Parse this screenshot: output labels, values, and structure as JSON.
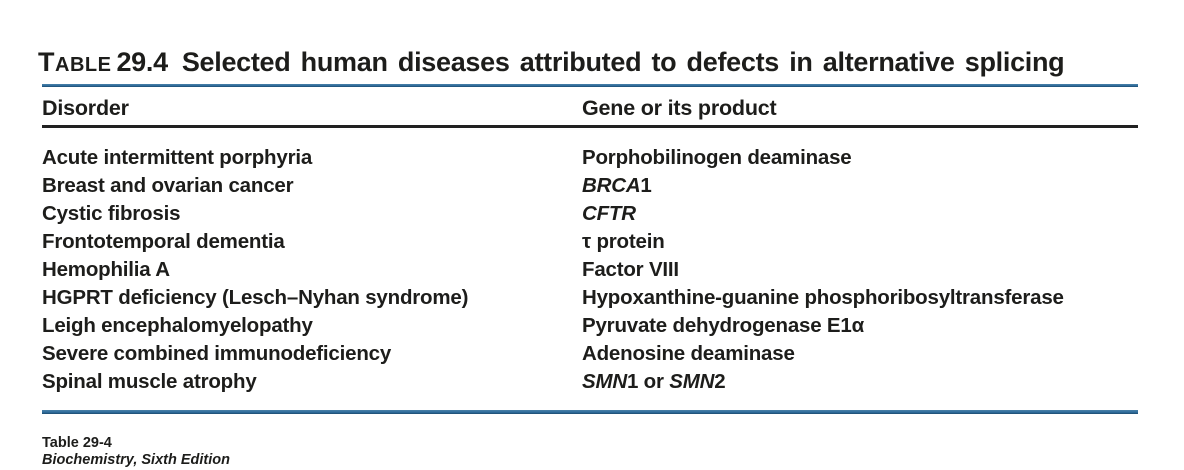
{
  "title": {
    "label": "TABLE",
    "number": "29.4",
    "caption": "Selected human diseases attributed to defects in alternative splicing"
  },
  "columns": [
    {
      "label": "Disorder"
    },
    {
      "label": "Gene or its product"
    }
  ],
  "rows": [
    {
      "disorder": [
        {
          "t": "Acute intermittent porphyria"
        }
      ],
      "gene": [
        {
          "t": "Porphobilinogen deaminase"
        }
      ]
    },
    {
      "disorder": [
        {
          "t": "Breast and ovarian cancer"
        }
      ],
      "gene": [
        {
          "t": "BRCA",
          "i": true
        },
        {
          "t": "1"
        }
      ]
    },
    {
      "disorder": [
        {
          "t": "Cystic fibrosis"
        }
      ],
      "gene": [
        {
          "t": "CFTR",
          "i": true
        }
      ]
    },
    {
      "disorder": [
        {
          "t": "Frontotemporal dementia"
        }
      ],
      "gene": [
        {
          "t": "τ protein"
        }
      ]
    },
    {
      "disorder": [
        {
          "t": "Hemophilia A"
        }
      ],
      "gene": [
        {
          "t": "Factor VIII"
        }
      ]
    },
    {
      "disorder": [
        {
          "t": "HGPRT deficiency (Lesch–Nyhan syndrome)"
        }
      ],
      "gene": [
        {
          "t": "Hypoxanthine-guanine phosphoribosyltransferase"
        }
      ]
    },
    {
      "disorder": [
        {
          "t": "Leigh encephalomyelopathy"
        }
      ],
      "gene": [
        {
          "t": "Pyruvate dehydrogenase E1α"
        }
      ]
    },
    {
      "disorder": [
        {
          "t": "Severe combined immunodeficiency"
        }
      ],
      "gene": [
        {
          "t": "Adenosine deaminase"
        }
      ]
    },
    {
      "disorder": [
        {
          "t": "Spinal muscle atrophy"
        }
      ],
      "gene": [
        {
          "t": "SMN",
          "i": true
        },
        {
          "t": "1 or "
        },
        {
          "t": "SMN",
          "i": true
        },
        {
          "t": "2"
        }
      ]
    }
  ],
  "footer": {
    "table_ref": "Table 29-4",
    "book": "Biochemistry, Sixth Edition"
  },
  "colors": {
    "text": "#1d1d1b",
    "rule_blue": "#2f6d9d",
    "rule_blue_light": "#4a81a8",
    "rule_blue_dark": "#1c4a6e",
    "rule_dark": "#212121"
  }
}
